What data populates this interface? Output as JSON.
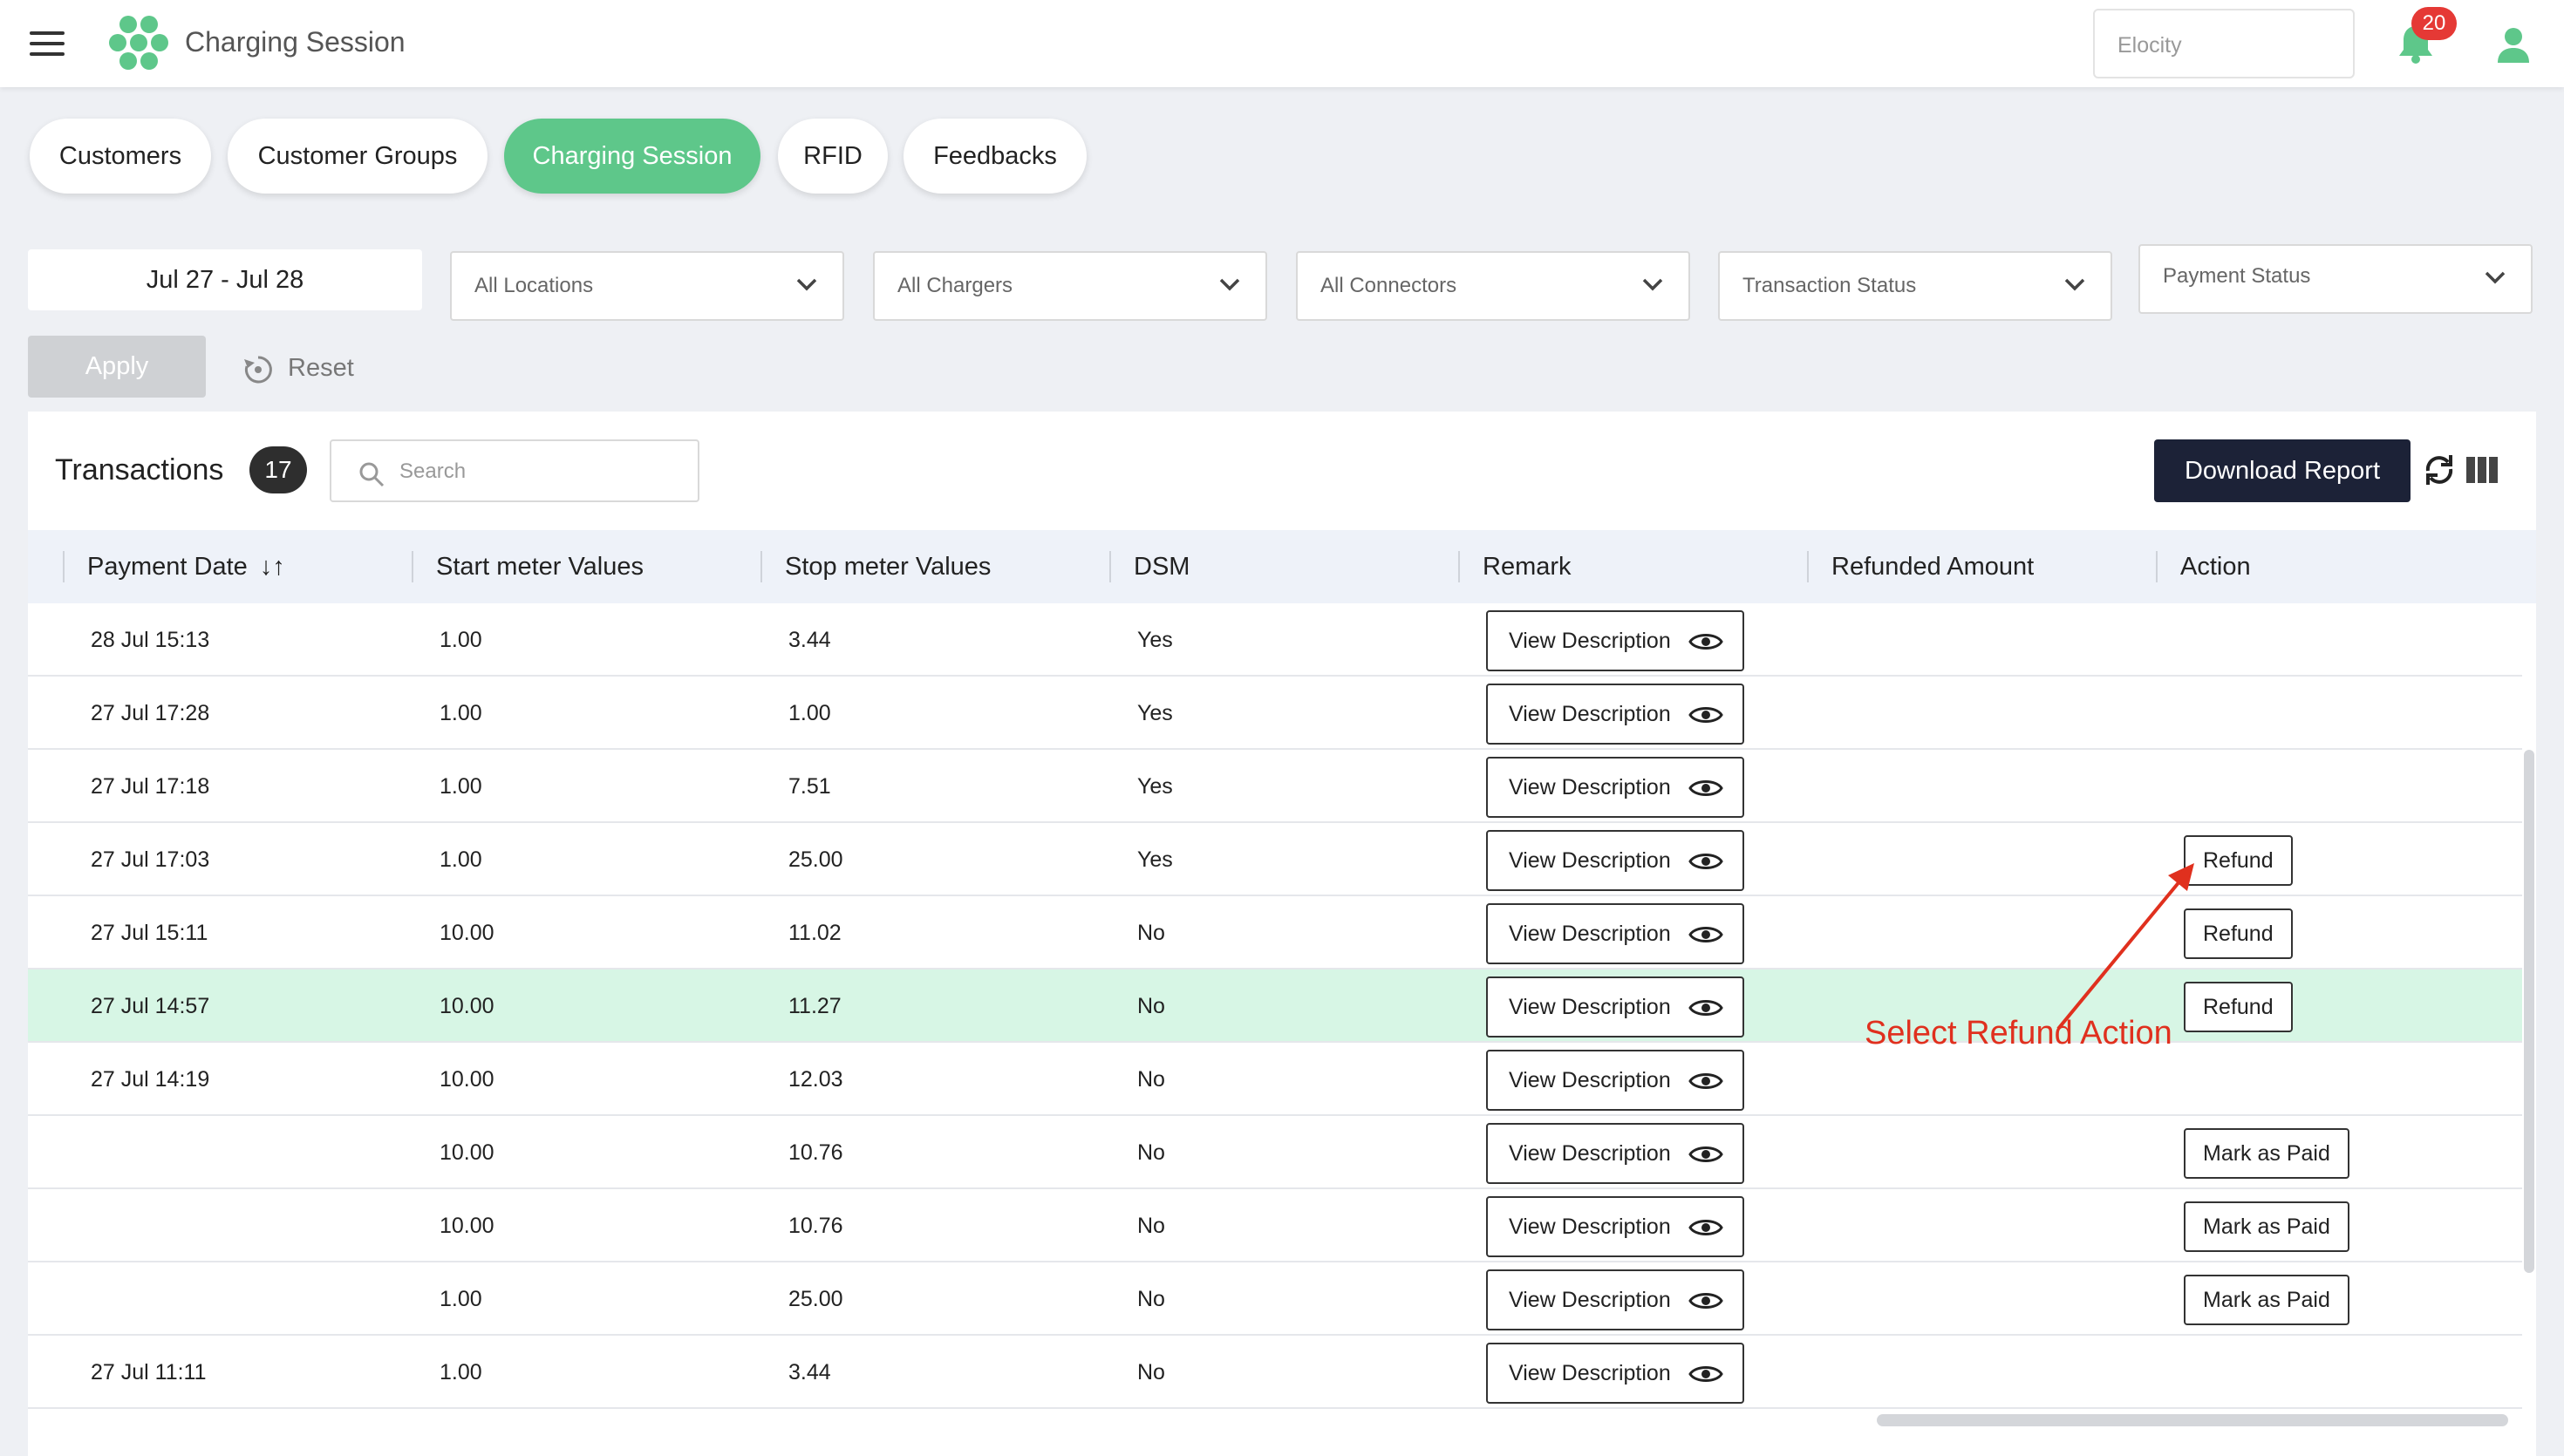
{
  "header": {
    "app_title": "Charging Session",
    "org_selector": "Elocity",
    "notification_count": "20"
  },
  "tabs": [
    {
      "label": "Customers",
      "active": false
    },
    {
      "label": "Customer Groups",
      "active": false
    },
    {
      "label": "Charging Session",
      "active": true
    },
    {
      "label": "RFID",
      "active": false
    },
    {
      "label": "Feedbacks",
      "active": false
    }
  ],
  "filters": {
    "date_range": "Jul 27 - Jul 28",
    "locations": "All Locations",
    "chargers": "All Chargers",
    "connectors": "All Connectors",
    "transaction_status": "Transaction Status",
    "payment_status": "Payment Status",
    "apply_label": "Apply",
    "reset_label": "Reset"
  },
  "transactions": {
    "title": "Transactions",
    "count": "17",
    "search_placeholder": "Search",
    "download_label": "Download Report",
    "columns": [
      "Payment Date",
      "Start meter Values",
      "Stop meter Values",
      "DSM",
      "Remark",
      "Refunded Amount",
      "Action"
    ],
    "sort_indicator": "↓↑",
    "view_label": "View Description",
    "rows": [
      {
        "date": "28 Jul 15:13",
        "start": "1.00",
        "stop": "3.44",
        "dsm": "Yes",
        "action": ""
      },
      {
        "date": "27 Jul 17:28",
        "start": "1.00",
        "stop": "1.00",
        "dsm": "Yes",
        "action": ""
      },
      {
        "date": "27 Jul 17:18",
        "start": "1.00",
        "stop": "7.51",
        "dsm": "Yes",
        "action": ""
      },
      {
        "date": "27 Jul 17:03",
        "start": "1.00",
        "stop": "25.00",
        "dsm": "Yes",
        "action": "Refund"
      },
      {
        "date": "27 Jul 15:11",
        "start": "10.00",
        "stop": "11.02",
        "dsm": "No",
        "action": "Refund"
      },
      {
        "date": "27 Jul 14:57",
        "start": "10.00",
        "stop": "11.27",
        "dsm": "No",
        "action": "Refund",
        "highlighted": true
      },
      {
        "date": "27 Jul 14:19",
        "start": "10.00",
        "stop": "12.03",
        "dsm": "No",
        "action": ""
      },
      {
        "date": "",
        "start": "10.00",
        "stop": "10.76",
        "dsm": "No",
        "action": "Mark as Paid"
      },
      {
        "date": "",
        "start": "10.00",
        "stop": "10.76",
        "dsm": "No",
        "action": "Mark as Paid"
      },
      {
        "date": "",
        "start": "1.00",
        "stop": "25.00",
        "dsm": "No",
        "action": "Mark as Paid"
      },
      {
        "date": "27 Jul 11:11",
        "start": "1.00",
        "stop": "3.44",
        "dsm": "No",
        "action": ""
      }
    ]
  },
  "annotation": {
    "text": "Select Refund Action"
  },
  "colors": {
    "accent_green": "#5ec78a",
    "row_highlight": "#d7f6e5",
    "download_button": "#1c2237",
    "annotation_red": "#e0301e",
    "badge_red": "#e53935"
  }
}
